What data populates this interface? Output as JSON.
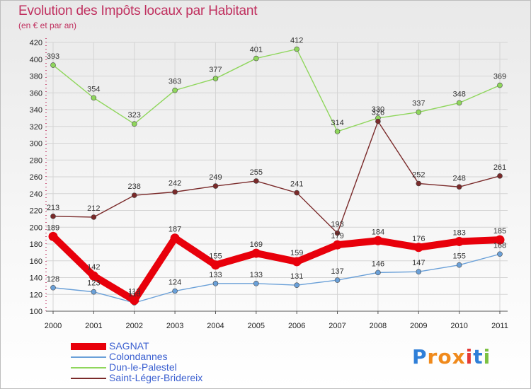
{
  "title": "Evolution des Impôts locaux par Habitant",
  "subtitle": "(en € et par an)",
  "logo": {
    "text": "Proxiti",
    "letters": [
      "P",
      "r",
      "o",
      "x",
      "i",
      "t",
      "i"
    ],
    "letter_colors": [
      "#2f7fd8",
      "#f08a1c",
      "#f08a1c",
      "#f08a1c",
      "#e53935",
      "#2f7fd8",
      "#7cc242"
    ]
  },
  "chart_data": {
    "type": "line",
    "title": "Evolution des Impôts locaux par Habitant",
    "xlabel": "",
    "ylabel": "(en € et par an)",
    "ylim": [
      100,
      420
    ],
    "yticks": [
      100,
      120,
      140,
      160,
      180,
      200,
      220,
      240,
      260,
      280,
      300,
      320,
      340,
      360,
      380,
      400,
      420
    ],
    "categories": [
      "2000",
      "2001",
      "2002",
      "2003",
      "2004",
      "2005",
      "2006",
      "2007",
      "2008",
      "2009",
      "2010",
      "2011"
    ],
    "series": [
      {
        "name": "SAGNAT",
        "color": "#e8000b",
        "thick": true,
        "values": [
          189,
          142,
          113,
          187,
          155,
          169,
          159,
          179,
          184,
          176,
          183,
          185
        ]
      },
      {
        "name": "Colondannes",
        "color": "#6aa0d8",
        "values": [
          128,
          123,
          110,
          124,
          133,
          133,
          131,
          137,
          146,
          147,
          155,
          168
        ]
      },
      {
        "name": "Dun-le-Palestel",
        "color": "#8fd65c",
        "values": [
          393,
          354,
          323,
          363,
          377,
          401,
          412,
          314,
          330,
          337,
          348,
          369
        ]
      },
      {
        "name": "Saint-Léger-Bridereix",
        "color": "#7a2a2a",
        "values": [
          213,
          212,
          238,
          242,
          249,
          255,
          241,
          193,
          326,
          252,
          248,
          261
        ]
      }
    ]
  }
}
